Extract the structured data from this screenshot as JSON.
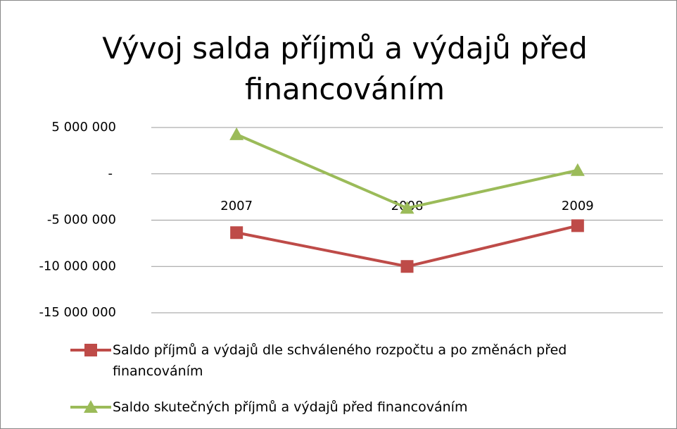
{
  "chart_data": {
    "type": "line",
    "title": "Vývoj salda příjmů a výdajů před financováním",
    "categories": [
      "2007",
      "2008",
      "2009"
    ],
    "series": [
      {
        "name": "Saldo příjmů a výdajů dle schváleného rozpočtu a po změnách před financováním",
        "color": "#be4b48",
        "marker": "square",
        "values": [
          -6350000,
          -10000000,
          -5600000
        ]
      },
      {
        "name": "Saldo skutečných příjmů a výdajů před financováním",
        "color": "#9bbb59",
        "marker": "triangle",
        "values": [
          4250000,
          -3700000,
          380000
        ]
      }
    ],
    "ylim": [
      -15000000,
      5000000
    ],
    "yticks": [
      {
        "value": 5000000,
        "label": "5 000 000"
      },
      {
        "value": 0,
        "label": "-"
      },
      {
        "value": -5000000,
        "label": "-5 000 000"
      },
      {
        "value": -10000000,
        "label": "-10 000 000"
      },
      {
        "value": -15000000,
        "label": "-15 000 000"
      }
    ],
    "grid": true,
    "legend": "bottom"
  }
}
